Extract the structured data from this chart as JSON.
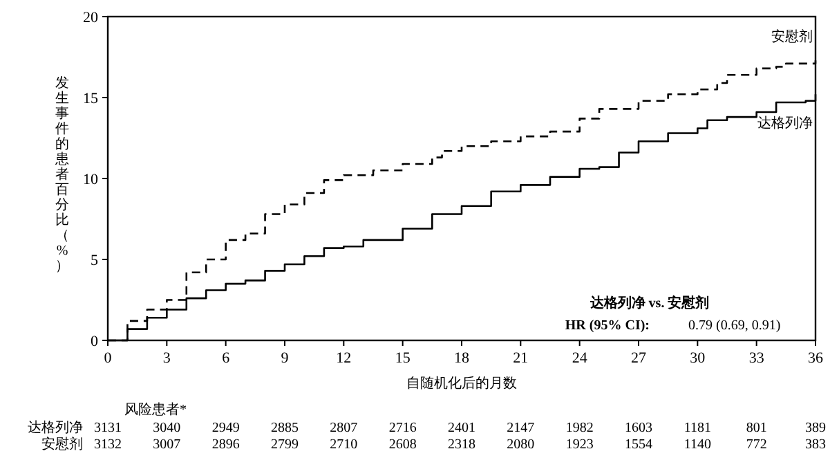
{
  "chart_data": {
    "type": "step",
    "xlabel": "自随机化后的月数",
    "ylabel": "发生事件的患者百分比（%）",
    "xlim": [
      0,
      36
    ],
    "ylim": [
      0,
      20
    ],
    "xticks": [
      0,
      3,
      6,
      9,
      12,
      15,
      18,
      21,
      24,
      27,
      30,
      33,
      36
    ],
    "yticks": [
      0,
      5,
      10,
      15,
      20
    ],
    "grid": false,
    "series": [
      {
        "name": "安慰剂",
        "color": "#000000",
        "line_style": "dashed",
        "x": [
          0,
          1,
          2,
          3,
          4,
          5,
          6,
          7,
          8,
          9,
          10,
          11,
          12,
          13.5,
          15,
          16.5,
          17,
          18,
          19.5,
          21,
          22.5,
          24,
          25,
          27,
          28.5,
          30,
          31,
          31.5,
          33,
          34,
          34.5,
          36
        ],
        "values": [
          0,
          1.2,
          1.9,
          2.5,
          4.2,
          5,
          6.2,
          6.6,
          7.8,
          8.4,
          9.1,
          9.9,
          10.2,
          10.5,
          10.9,
          11.3,
          11.7,
          12,
          12.3,
          12.6,
          12.9,
          13.7,
          14.3,
          14.8,
          15.2,
          15.5,
          15.9,
          16.4,
          16.8,
          16.9,
          17.1,
          17.3
        ]
      },
      {
        "name": "达格列净",
        "color": "#000000",
        "line_style": "solid",
        "x": [
          0,
          1,
          2,
          3,
          4,
          5,
          6,
          7,
          8,
          9,
          10,
          11,
          12,
          13,
          15,
          16.5,
          18,
          19.5,
          21,
          22.5,
          24,
          25,
          26,
          27,
          28.5,
          30,
          30.5,
          31.5,
          33,
          34,
          35.5,
          36
        ],
        "values": [
          0,
          0.7,
          1.4,
          1.9,
          2.6,
          3.1,
          3.5,
          3.7,
          4.3,
          4.7,
          5.2,
          5.7,
          5.8,
          6.2,
          6.9,
          7.8,
          8.3,
          9.2,
          9.6,
          10.1,
          10.6,
          10.7,
          11.6,
          12.3,
          12.8,
          13.1,
          13.6,
          13.8,
          14.1,
          14.7,
          14.8,
          15.2
        ]
      }
    ],
    "annotations": [
      "达格列净 vs. 安慰剂",
      "HR (95% CI):",
      "0.79 (0.69, 0.91)",
      "风险患者*",
      "达格列净",
      "3131",
      "3040",
      "2949",
      "2885",
      "2807",
      "2716",
      "2401",
      "2147",
      "1982",
      "1603",
      "1181",
      "801",
      "389",
      "安慰剂",
      "3132",
      "3007",
      "2896",
      "2799",
      "2710",
      "2608",
      "2318",
      "2080",
      "1923",
      "1554",
      "1140",
      "772",
      "383"
    ]
  }
}
